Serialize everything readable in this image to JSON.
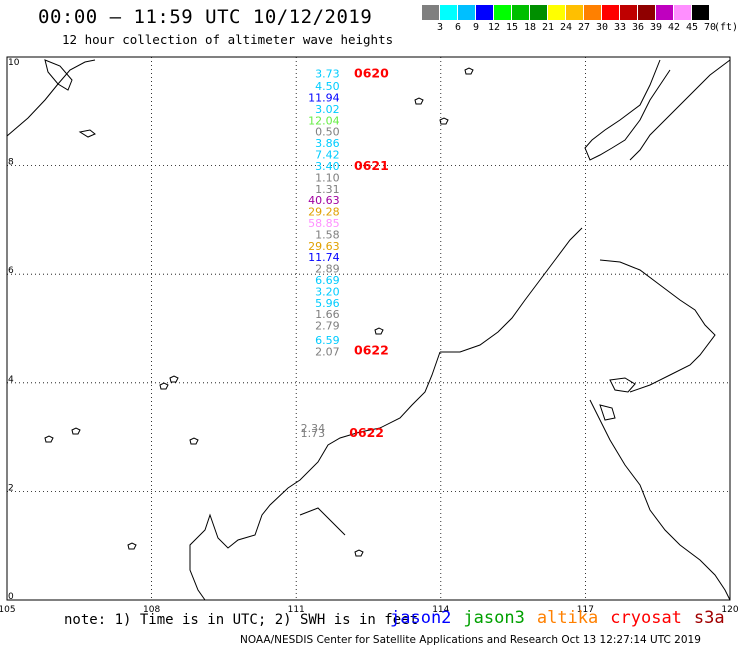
{
  "title": "00:00 – 11:59 UTC 10/12/2019",
  "subtitle": "12 hour collection of altimeter wave heights",
  "color_scale": {
    "unit": "(ft)",
    "labels": [
      "3",
      "6",
      "9",
      "12",
      "15",
      "18",
      "21",
      "24",
      "27",
      "30",
      "33",
      "36",
      "39",
      "42",
      "45",
      "70"
    ],
    "colors": [
      "#7f7f7f",
      "#00ffff",
      "#00bfff",
      "#0000ff",
      "#00ff00",
      "#00bf00",
      "#008f00",
      "#ffff00",
      "#ffbf00",
      "#ff8000",
      "#ff0000",
      "#bf0000",
      "#8f0000",
      "#bf00bf",
      "#ff8fff",
      "#000000"
    ]
  },
  "axes": {
    "x_ticks": [
      "105",
      "108",
      "111",
      "114",
      "117",
      "120"
    ],
    "y_ticks": [
      "0",
      "2",
      "4",
      "6",
      "8",
      "10"
    ]
  },
  "observations": [
    {
      "text": "3.73",
      "color": "#00ccff",
      "lon": 111.9,
      "lat": 9.62
    },
    {
      "text": "4.50",
      "color": "#00ccff",
      "lon": 111.9,
      "lat": 9.39
    },
    {
      "text": "11.94",
      "color": "#0000ff",
      "lon": 111.9,
      "lat": 9.18
    },
    {
      "text": "3.02",
      "color": "#00ccff",
      "lon": 111.9,
      "lat": 8.97
    },
    {
      "text": "12.04",
      "color": "#66ee44",
      "lon": 111.9,
      "lat": 8.76
    },
    {
      "text": "0.50",
      "color": "#7f7f7f",
      "lon": 111.9,
      "lat": 8.55
    },
    {
      "text": "3.86",
      "color": "#00ccff",
      "lon": 111.9,
      "lat": 8.34
    },
    {
      "text": "7.42",
      "color": "#00ccff",
      "lon": 111.9,
      "lat": 8.13
    },
    {
      "text": "3.40",
      "color": "#00ccff",
      "lon": 111.9,
      "lat": 7.92
    },
    {
      "text": "1.10",
      "color": "#7f7f7f",
      "lon": 111.9,
      "lat": 7.71
    },
    {
      "text": "1.31",
      "color": "#7f7f7f",
      "lon": 111.9,
      "lat": 7.5
    },
    {
      "text": "40.63",
      "color": "#a000a0",
      "lon": 111.9,
      "lat": 7.29
    },
    {
      "text": "29.28",
      "color": "#e0a000",
      "lon": 111.9,
      "lat": 7.08
    },
    {
      "text": "58.85",
      "color": "#ff90ff",
      "lon": 111.9,
      "lat": 6.87
    },
    {
      "text": "1.58",
      "color": "#7f7f7f",
      "lon": 111.9,
      "lat": 6.66
    },
    {
      "text": "29.63",
      "color": "#e0a000",
      "lon": 111.9,
      "lat": 6.45
    },
    {
      "text": "11.74",
      "color": "#0000ff",
      "lon": 111.9,
      "lat": 6.24
    },
    {
      "text": "2.89",
      "color": "#7f7f7f",
      "lon": 111.9,
      "lat": 6.03
    },
    {
      "text": "6.69",
      "color": "#00ccff",
      "lon": 111.9,
      "lat": 5.82
    },
    {
      "text": "3.20",
      "color": "#00ccff",
      "lon": 111.9,
      "lat": 5.61
    },
    {
      "text": "5.96",
      "color": "#00ccff",
      "lon": 111.9,
      "lat": 5.4
    },
    {
      "text": "1.66",
      "color": "#7f7f7f",
      "lon": 111.9,
      "lat": 5.19
    },
    {
      "text": "2.79",
      "color": "#7f7f7f",
      "lon": 111.9,
      "lat": 4.98
    },
    {
      "text": "6.59",
      "color": "#00ccff",
      "lon": 111.9,
      "lat": 4.71
    },
    {
      "text": "2.07",
      "color": "#7f7f7f",
      "lon": 111.9,
      "lat": 4.5
    },
    {
      "text": "2.34",
      "color": "#7f7f7f",
      "lon": 111.6,
      "lat": 3.09
    },
    {
      "text": "1.73",
      "color": "#7f7f7f",
      "lon": 111.6,
      "lat": 3.0
    }
  ],
  "pass_times": [
    {
      "text": "0620",
      "lon": 112.2,
      "lat": 9.62
    },
    {
      "text": "0621",
      "lon": 112.2,
      "lat": 7.92
    },
    {
      "text": "0622",
      "lon": 112.2,
      "lat": 4.52
    },
    {
      "text": "0622",
      "lon": 112.1,
      "lat": 3.0
    }
  ],
  "note": "note: 1) Time is in UTC; 2) SWH is in feet",
  "satellites": [
    {
      "name": "jason2",
      "color": "#0000ff"
    },
    {
      "name": "jason3",
      "color": "#00a000"
    },
    {
      "name": "altika",
      "color": "#ff8000"
    },
    {
      "name": "cryosat",
      "color": "#ff0000"
    },
    {
      "name": "s3a",
      "color": "#a00000"
    }
  ],
  "credit": "NOAA/NESDIS Center for Satellite Applications and Research    Oct 13 12:27:14 UTC 2019"
}
